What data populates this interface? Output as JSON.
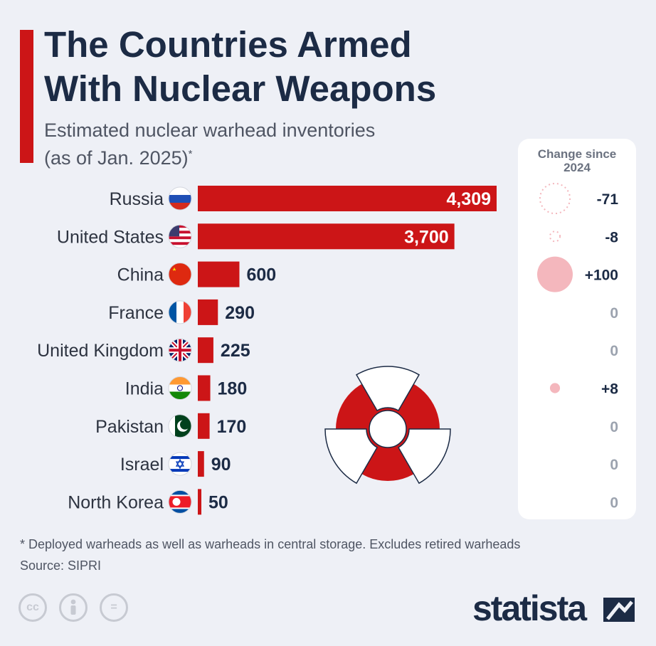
{
  "colors": {
    "accent": "#cc1517",
    "title": "#1c2b45",
    "bubble": "#f4b7bd",
    "background": "#eef0f6"
  },
  "header": {
    "title_line1": "The Countries Armed",
    "title_line2": "With Nuclear Weapons",
    "subtitle_line1": "Estimated nuclear warhead inventories",
    "subtitle_line2": "(as of Jan. 2025)",
    "subtitle_marker": "*"
  },
  "change_panel": {
    "header_line1": "Change since",
    "header_line2": "2024"
  },
  "chart_data": {
    "type": "bar",
    "orientation": "horizontal",
    "categories": [
      "Russia",
      "United States",
      "China",
      "France",
      "United Kingdom",
      "India",
      "Pakistan",
      "Israel",
      "North Korea"
    ],
    "values": [
      4309,
      3700,
      600,
      290,
      225,
      180,
      170,
      90,
      50
    ],
    "value_labels": [
      "4,309",
      "3,700",
      "600",
      "290",
      "225",
      "180",
      "170",
      "90",
      "50"
    ],
    "flags": [
      "russia-flag-icon",
      "usa-flag-icon",
      "china-flag-icon",
      "france-flag-icon",
      "uk-flag-icon",
      "india-flag-icon",
      "pakistan-flag-icon",
      "israel-flag-icon",
      "north-korea-flag-icon"
    ],
    "change_values": [
      -71,
      -8,
      100,
      0,
      0,
      8,
      0,
      0,
      0
    ],
    "change_labels": [
      "-71",
      "-8",
      "+100",
      "0",
      "0",
      "+8",
      "0",
      "0",
      "0"
    ],
    "grid": false,
    "decoration": "radiation-symbol-icon"
  },
  "footer": {
    "footnote": "* Deployed warheads as well as warheads in central storage. Excludes retired warheads",
    "source": "Source: SIPRI",
    "license_icons": [
      "cc-icon",
      "attribution-icon",
      "no-derivatives-icon"
    ],
    "cc_label": "cc",
    "nd_label": "=",
    "logo_text": "statista"
  }
}
